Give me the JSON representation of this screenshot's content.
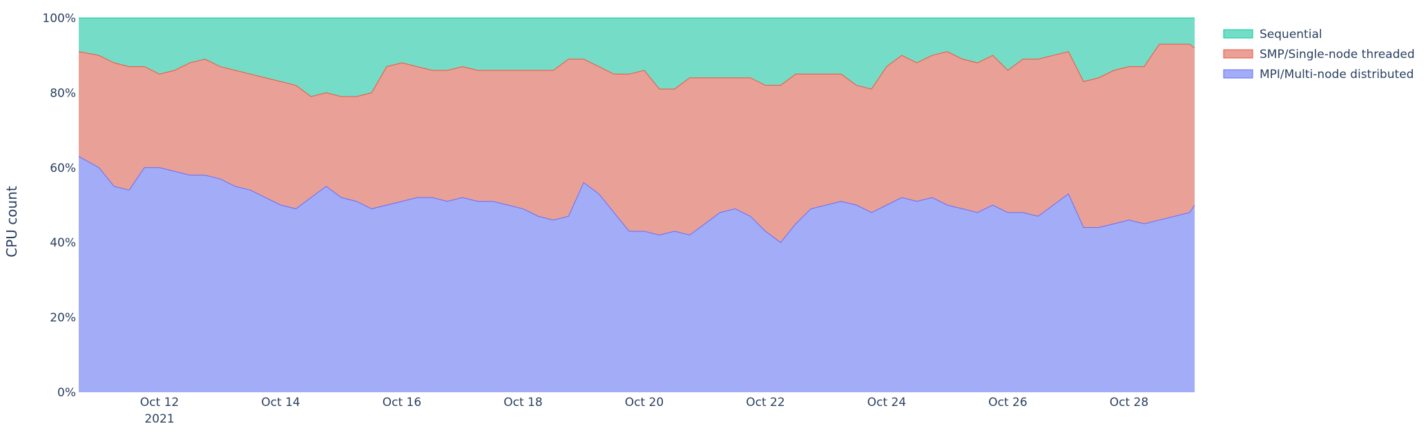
{
  "chart_data": {
    "type": "area",
    "stacked": true,
    "normalized": true,
    "title": "",
    "xlabel": "",
    "ylabel": "CPU count",
    "ylim": [
      0,
      100
    ],
    "y_ticks": [
      0,
      20,
      40,
      60,
      80,
      100
    ],
    "y_tick_labels": [
      "0%",
      "20%",
      "40%",
      "60%",
      "80%",
      "100%"
    ],
    "xlim": [
      "2021-10-10 16:00",
      "2021-10-29 02:00"
    ],
    "x_ticks": [
      "2021-10-12",
      "2021-10-14",
      "2021-10-16",
      "2021-10-18",
      "2021-10-20",
      "2021-10-22",
      "2021-10-24",
      "2021-10-26",
      "2021-10-28"
    ],
    "x_tick_labels": [
      "Oct 12",
      "Oct 14",
      "Oct 16",
      "Oct 18",
      "Oct 20",
      "Oct 22",
      "Oct 24",
      "Oct 26",
      "Oct 28"
    ],
    "x_tick_year_label": "2021",
    "grid": true,
    "legend_position": "top-right",
    "x": [
      "2021-10-10 16:00",
      "2021-10-11 00:00",
      "2021-10-11 06:00",
      "2021-10-11 12:00",
      "2021-10-11 18:00",
      "2021-10-12 00:00",
      "2021-10-12 06:00",
      "2021-10-12 12:00",
      "2021-10-12 18:00",
      "2021-10-13 00:00",
      "2021-10-13 06:00",
      "2021-10-13 12:00",
      "2021-10-13 18:00",
      "2021-10-14 00:00",
      "2021-10-14 06:00",
      "2021-10-14 12:00",
      "2021-10-14 18:00",
      "2021-10-15 00:00",
      "2021-10-15 06:00",
      "2021-10-15 12:00",
      "2021-10-15 18:00",
      "2021-10-16 00:00",
      "2021-10-16 06:00",
      "2021-10-16 12:00",
      "2021-10-16 18:00",
      "2021-10-17 00:00",
      "2021-10-17 06:00",
      "2021-10-17 12:00",
      "2021-10-17 18:00",
      "2021-10-18 00:00",
      "2021-10-18 06:00",
      "2021-10-18 12:00",
      "2021-10-18 18:00",
      "2021-10-19 00:00",
      "2021-10-19 06:00",
      "2021-10-19 12:00",
      "2021-10-19 18:00",
      "2021-10-20 00:00",
      "2021-10-20 06:00",
      "2021-10-20 12:00",
      "2021-10-20 18:00",
      "2021-10-21 00:00",
      "2021-10-21 06:00",
      "2021-10-21 12:00",
      "2021-10-21 18:00",
      "2021-10-22 00:00",
      "2021-10-22 06:00",
      "2021-10-22 12:00",
      "2021-10-22 18:00",
      "2021-10-23 00:00",
      "2021-10-23 06:00",
      "2021-10-23 12:00",
      "2021-10-23 18:00",
      "2021-10-24 00:00",
      "2021-10-24 06:00",
      "2021-10-24 12:00",
      "2021-10-24 18:00",
      "2021-10-25 00:00",
      "2021-10-25 06:00",
      "2021-10-25 12:00",
      "2021-10-25 18:00",
      "2021-10-26 00:00",
      "2021-10-26 06:00",
      "2021-10-26 12:00",
      "2021-10-26 18:00",
      "2021-10-27 00:00",
      "2021-10-27 06:00",
      "2021-10-27 12:00",
      "2021-10-27 18:00",
      "2021-10-28 00:00",
      "2021-10-28 06:00",
      "2021-10-28 12:00",
      "2021-10-28 18:00",
      "2021-10-29 00:00",
      "2021-10-29 02:00"
    ],
    "series": [
      {
        "name": "MPI/Multi-node distributed",
        "color": "#a3acf7",
        "line_color": "#636efa",
        "values": [
          63,
          60,
          55,
          54,
          60,
          60,
          59,
          58,
          58,
          57,
          55,
          54,
          52,
          50,
          49,
          52,
          55,
          52,
          51,
          49,
          50,
          51,
          52,
          52,
          51,
          52,
          51,
          51,
          50,
          49,
          47,
          46,
          47,
          56,
          53,
          48,
          43,
          43,
          42,
          43,
          42,
          45,
          48,
          49,
          47,
          43,
          40,
          45,
          49,
          50,
          51,
          50,
          48,
          50,
          52,
          51,
          52,
          50,
          49,
          48,
          50,
          48,
          48,
          47,
          50,
          53,
          44,
          44,
          45,
          46,
          45,
          46,
          47,
          48,
          50
        ]
      },
      {
        "name": "SMP/Single-node threaded",
        "color": "#e9a097",
        "line_color": "#ef553b",
        "values": [
          28,
          30,
          33,
          33,
          27,
          25,
          27,
          30,
          31,
          30,
          31,
          31,
          32,
          33,
          33,
          27,
          25,
          27,
          28,
          31,
          37,
          37,
          35,
          34,
          35,
          35,
          35,
          35,
          36,
          37,
          39,
          40,
          42,
          33,
          34,
          37,
          42,
          43,
          39,
          38,
          42,
          39,
          36,
          35,
          37,
          39,
          42,
          40,
          36,
          35,
          34,
          32,
          33,
          37,
          38,
          37,
          38,
          41,
          40,
          40,
          40,
          38,
          41,
          42,
          40,
          38,
          39,
          40,
          41,
          41,
          42,
          47,
          46,
          45,
          42
        ]
      },
      {
        "name": "Sequential",
        "color": "#74dcc7",
        "line_color": "#00cc96",
        "values": [
          9,
          10,
          12,
          13,
          13,
          15,
          14,
          12,
          11,
          13,
          14,
          15,
          16,
          17,
          18,
          21,
          20,
          21,
          21,
          20,
          13,
          12,
          13,
          14,
          14,
          13,
          14,
          14,
          14,
          14,
          14,
          14,
          11,
          11,
          13,
          15,
          15,
          14,
          19,
          19,
          16,
          16,
          16,
          16,
          16,
          18,
          18,
          15,
          15,
          15,
          15,
          18,
          19,
          13,
          10,
          12,
          10,
          9,
          11,
          12,
          10,
          14,
          11,
          11,
          10,
          9,
          17,
          16,
          14,
          13,
          13,
          7,
          7,
          7,
          8
        ]
      }
    ]
  }
}
